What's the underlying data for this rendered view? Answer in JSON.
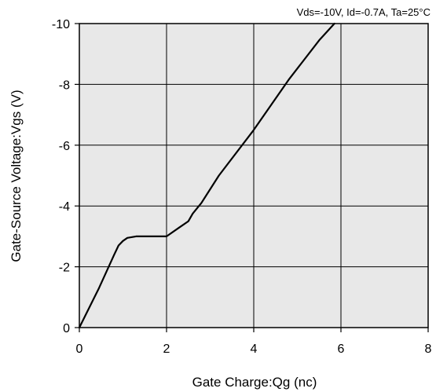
{
  "chart_data": {
    "type": "line",
    "annotation": "Vds=-10V, Id=-0.7A, Ta=25°C",
    "xlabel": "Gate Charge:Qg  (nc)",
    "ylabel": "Gate-Source Voltage:Vgs  (V)",
    "xlim": [
      0,
      8
    ],
    "ylim": [
      0,
      -10
    ],
    "xticks": [
      0,
      2,
      4,
      6,
      8
    ],
    "xtick_labels": [
      "0",
      "2",
      "4",
      "6",
      "8"
    ],
    "yticks": [
      0,
      -2,
      -4,
      -6,
      -8,
      -10
    ],
    "ytick_labels": [
      "0",
      "-2",
      "-4",
      "-6",
      "-8",
      "-10"
    ],
    "grid": true,
    "colors": {
      "plot_background": "#e8e8e8",
      "line": "#000000",
      "grid": "#000000"
    },
    "series": [
      {
        "x": [
          0,
          0.45,
          0.8,
          0.9,
          1.0,
          1.1,
          1.3,
          1.5,
          2.0,
          2.3,
          2.5,
          2.6,
          2.8,
          3.2,
          4.0,
          4.8,
          5.5,
          5.85
        ],
        "y": [
          0,
          -1.3,
          -2.4,
          -2.7,
          -2.85,
          -2.95,
          -3.0,
          -3.0,
          -3.0,
          -3.3,
          -3.5,
          -3.75,
          -4.1,
          -5.0,
          -6.5,
          -8.15,
          -9.45,
          -10.0
        ]
      }
    ]
  }
}
